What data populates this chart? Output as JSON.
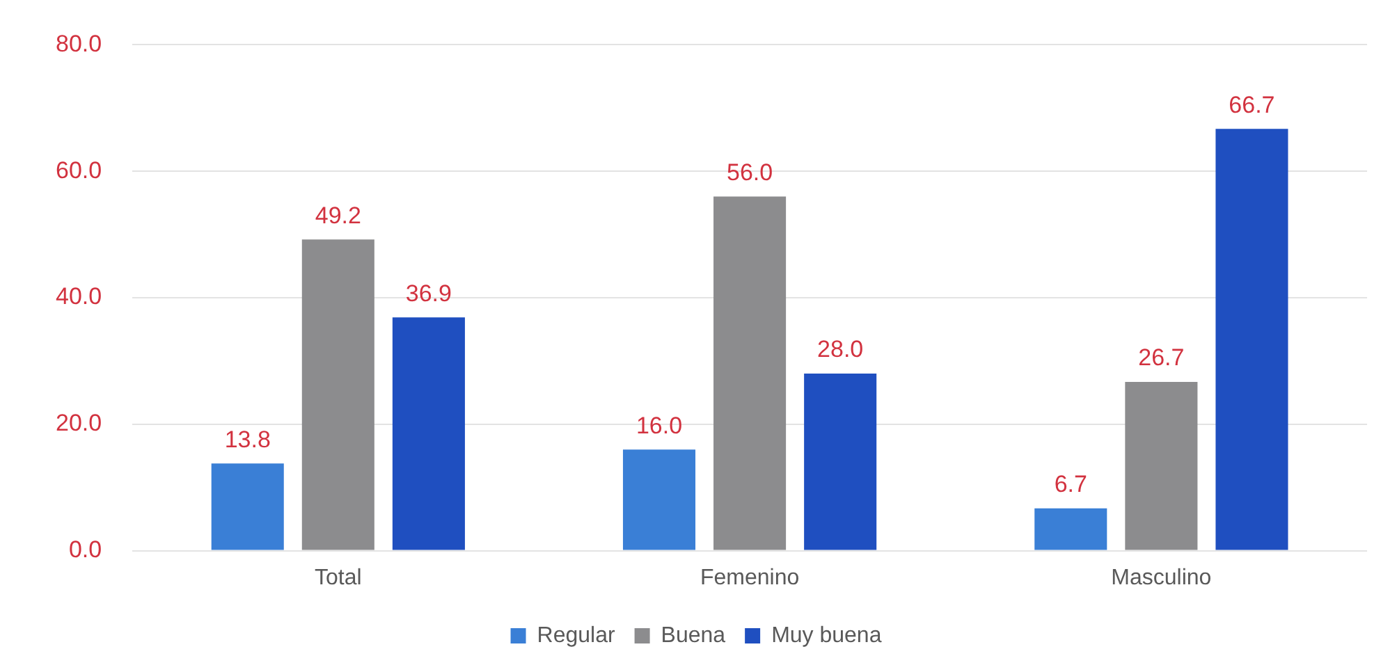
{
  "chart_data": {
    "type": "bar",
    "categories": [
      "Total",
      "Femenino",
      "Masculino"
    ],
    "series": [
      {
        "name": "Regular",
        "color": "#3a7fd6",
        "values": [
          13.8,
          16.0,
          6.7
        ],
        "value_labels": [
          "13.8",
          "16.0",
          "6.7"
        ]
      },
      {
        "name": "Buena",
        "color": "#8c8c8e",
        "values": [
          49.2,
          56.0,
          26.7
        ],
        "value_labels": [
          "49.2",
          "56.0",
          "26.7"
        ]
      },
      {
        "name": "Muy buena",
        "color": "#1f4fc0",
        "values": [
          36.9,
          28.0,
          66.7
        ],
        "value_labels": [
          "36.9",
          "28.0",
          "66.7"
        ]
      }
    ],
    "ylim": [
      0,
      80
    ],
    "yticks": [
      {
        "value": 0,
        "label": "0.0"
      },
      {
        "value": 20,
        "label": "20.0"
      },
      {
        "value": 40,
        "label": "40.0"
      },
      {
        "value": 60,
        "label": "60.0"
      },
      {
        "value": 80,
        "label": "80.0"
      }
    ],
    "grid": "y",
    "legend": "bottom"
  }
}
